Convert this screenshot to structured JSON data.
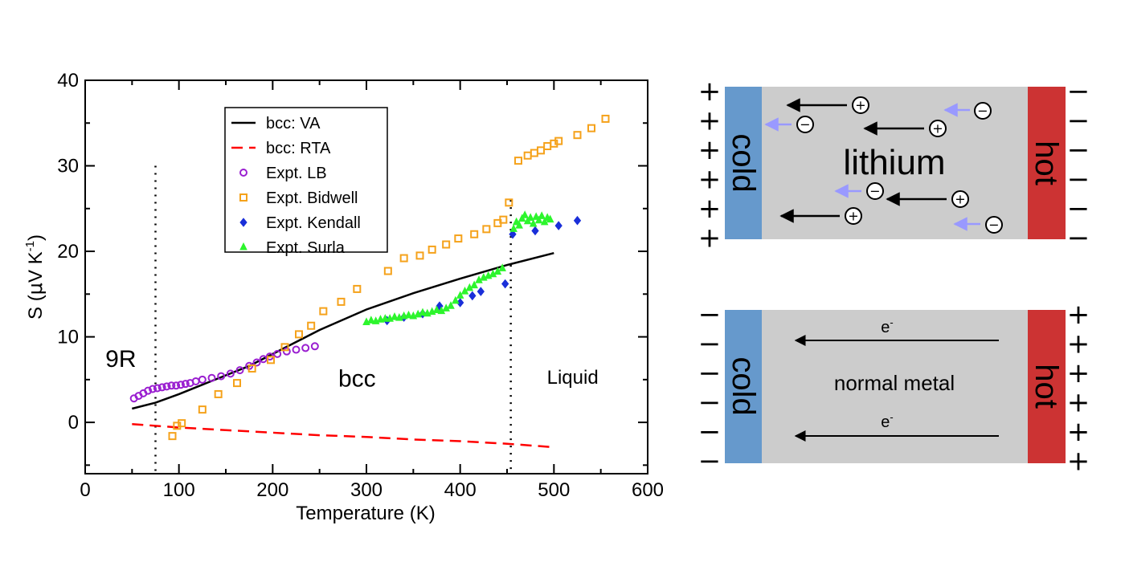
{
  "chart_data": {
    "type": "scatter",
    "xlabel": "Temperature (K)",
    "ylabel_main": "S (",
    "ylabel_mu": "μ",
    "ylabel_unit": "V K",
    "ylabel_exp": "-1",
    "ylabel_close": ")",
    "xlim": [
      0,
      600
    ],
    "ylim": [
      -6,
      40
    ],
    "xticks": [
      0,
      100,
      200,
      300,
      400,
      500,
      600
    ],
    "yticks": [
      0,
      10,
      20,
      30,
      40
    ],
    "legend_position": "upper-center",
    "phase_lines": [
      75,
      454
    ],
    "phase_labels": [
      {
        "text": "9R",
        "x": 38,
        "y": 6.5,
        "size": 30
      },
      {
        "text": "bcc",
        "x": 290,
        "y": 4.2,
        "size": 30
      },
      {
        "text": "Liquid",
        "x": 520,
        "y": 4.5,
        "size": 24
      }
    ],
    "series": [
      {
        "name": "bcc: VA",
        "kind": "line",
        "color": "#000000",
        "dash": "",
        "points": [
          [
            50,
            1.6
          ],
          [
            75,
            2.3
          ],
          [
            100,
            3.3
          ],
          [
            125,
            4.4
          ],
          [
            150,
            5.5
          ],
          [
            175,
            6.6
          ],
          [
            200,
            8.0
          ],
          [
            250,
            10.8
          ],
          [
            300,
            13.2
          ],
          [
            350,
            15.1
          ],
          [
            400,
            16.8
          ],
          [
            450,
            18.4
          ],
          [
            500,
            19.8
          ]
        ]
      },
      {
        "name": "bcc: RTA",
        "kind": "line",
        "color": "#ff0000",
        "dash": "14,8",
        "points": [
          [
            50,
            -0.2
          ],
          [
            100,
            -0.6
          ],
          [
            150,
            -0.9
          ],
          [
            200,
            -1.2
          ],
          [
            250,
            -1.5
          ],
          [
            300,
            -1.7
          ],
          [
            350,
            -2.0
          ],
          [
            400,
            -2.2
          ],
          [
            450,
            -2.5
          ],
          [
            500,
            -2.9
          ]
        ]
      },
      {
        "name": "Expt. LB",
        "kind": "marker",
        "shape": "circle",
        "color": "#9a1fd0",
        "points": [
          [
            52,
            2.8
          ],
          [
            57,
            3.1
          ],
          [
            62,
            3.4
          ],
          [
            67,
            3.7
          ],
          [
            72,
            3.9
          ],
          [
            77,
            4.0
          ],
          [
            82,
            4.1
          ],
          [
            87,
            4.2
          ],
          [
            92,
            4.3
          ],
          [
            97,
            4.3
          ],
          [
            102,
            4.4
          ],
          [
            107,
            4.5
          ],
          [
            112,
            4.6
          ],
          [
            118,
            4.8
          ],
          [
            125,
            5.0
          ],
          [
            135,
            5.2
          ],
          [
            145,
            5.4
          ],
          [
            155,
            5.7
          ],
          [
            165,
            6.1
          ],
          [
            175,
            6.6
          ],
          [
            183,
            7.0
          ],
          [
            190,
            7.4
          ],
          [
            197,
            7.7
          ],
          [
            205,
            8.0
          ],
          [
            215,
            8.3
          ],
          [
            225,
            8.5
          ],
          [
            235,
            8.7
          ],
          [
            245,
            8.9
          ]
        ]
      },
      {
        "name": "Expt. Bidwell",
        "kind": "marker",
        "shape": "square",
        "color": "#f5a21b",
        "points": [
          [
            93,
            -1.6
          ],
          [
            98,
            -0.4
          ],
          [
            103,
            -0.1
          ],
          [
            125,
            1.5
          ],
          [
            142,
            3.3
          ],
          [
            162,
            4.6
          ],
          [
            178,
            6.3
          ],
          [
            198,
            7.3
          ],
          [
            213,
            8.8
          ],
          [
            228,
            10.3
          ],
          [
            241,
            11.3
          ],
          [
            254,
            13.0
          ],
          [
            273,
            14.1
          ],
          [
            290,
            15.6
          ],
          [
            323,
            17.7
          ],
          [
            340,
            19.2
          ],
          [
            357,
            19.5
          ],
          [
            370,
            20.2
          ],
          [
            385,
            20.8
          ],
          [
            398,
            21.5
          ],
          [
            415,
            22.0
          ],
          [
            428,
            22.6
          ],
          [
            440,
            23.3
          ],
          [
            446,
            23.7
          ],
          [
            452,
            25.7
          ],
          [
            462,
            30.6
          ],
          [
            472,
            31.2
          ],
          [
            479,
            31.5
          ],
          [
            486,
            31.8
          ],
          [
            493,
            32.3
          ],
          [
            500,
            32.6
          ],
          [
            505,
            32.9
          ],
          [
            525,
            33.6
          ],
          [
            540,
            34.4
          ],
          [
            555,
            35.5
          ]
        ]
      },
      {
        "name": "Expt. Kendall",
        "kind": "marker",
        "shape": "diamond",
        "color": "#1a2fd9",
        "points": [
          [
            322,
            11.9
          ],
          [
            340,
            12.3
          ],
          [
            360,
            12.7
          ],
          [
            378,
            13.6
          ],
          [
            400,
            14.0
          ],
          [
            413,
            14.8
          ],
          [
            422,
            15.3
          ],
          [
            448,
            16.2
          ],
          [
            456,
            22.0
          ],
          [
            480,
            22.4
          ],
          [
            505,
            23.0
          ],
          [
            525,
            23.6
          ]
        ]
      },
      {
        "name": "Expt. Surla",
        "kind": "marker",
        "shape": "triangle",
        "color": "#2df52d",
        "points": [
          [
            300,
            11.7
          ],
          [
            305,
            11.9
          ],
          [
            310,
            11.8
          ],
          [
            315,
            12.0
          ],
          [
            320,
            12.1
          ],
          [
            325,
            12.1
          ],
          [
            330,
            12.3
          ],
          [
            335,
            12.2
          ],
          [
            340,
            12.4
          ],
          [
            345,
            12.5
          ],
          [
            350,
            12.4
          ],
          [
            355,
            12.6
          ],
          [
            360,
            12.8
          ],
          [
            365,
            12.7
          ],
          [
            370,
            12.9
          ],
          [
            375,
            13.1
          ],
          [
            380,
            13.0
          ],
          [
            385,
            13.3
          ],
          [
            390,
            13.6
          ],
          [
            395,
            14.2
          ],
          [
            400,
            14.8
          ],
          [
            405,
            15.3
          ],
          [
            410,
            15.7
          ],
          [
            415,
            16.0
          ],
          [
            420,
            16.6
          ],
          [
            425,
            16.9
          ],
          [
            430,
            17.1
          ],
          [
            435,
            17.3
          ],
          [
            440,
            17.6
          ],
          [
            445,
            18.0
          ],
          [
            457,
            22.6
          ],
          [
            460,
            23.4
          ],
          [
            463,
            23.0
          ],
          [
            466,
            23.8
          ],
          [
            469,
            24.2
          ],
          [
            472,
            23.5
          ],
          [
            475,
            23.9
          ],
          [
            478,
            23.2
          ],
          [
            481,
            24.0
          ],
          [
            484,
            23.6
          ],
          [
            487,
            24.1
          ],
          [
            490,
            23.4
          ],
          [
            493,
            23.9
          ],
          [
            496,
            23.7
          ]
        ]
      }
    ]
  },
  "diagrams": {
    "top": {
      "left_signs": [
        "+",
        "+",
        "+",
        "+",
        "+",
        "+"
      ],
      "right_signs": [
        "−",
        "−",
        "−",
        "−",
        "−",
        "−"
      ],
      "cold_label": "cold",
      "hot_label": "hot",
      "center_label": "lithium",
      "positive_carrier": "⊕",
      "negative_carrier": "⊖",
      "colors": {
        "cold": "#6699cc",
        "hot": "#cc3333",
        "body": "#cccccc",
        "hole_arrow": "#000000",
        "electron_arrow": "#9999ff"
      }
    },
    "bottom": {
      "left_signs": [
        "−",
        "−",
        "−",
        "−",
        "−",
        "−"
      ],
      "right_signs": [
        "+",
        "+",
        "+",
        "+",
        "+",
        "+"
      ],
      "cold_label": "cold",
      "hot_label": "hot",
      "center_label": "normal metal",
      "carrier_label": "e",
      "carrier_exp": "-"
    }
  }
}
